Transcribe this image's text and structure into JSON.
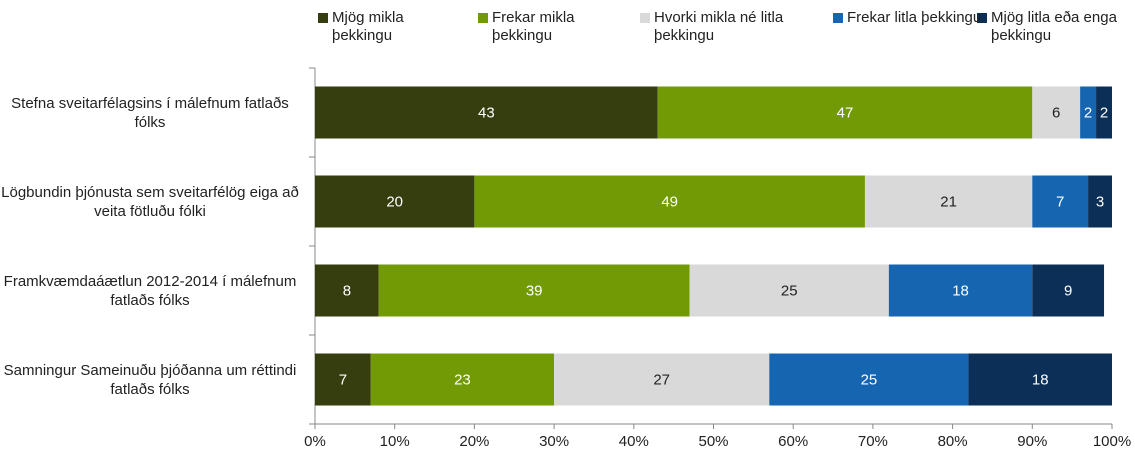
{
  "chart_data": {
    "type": "stacked_bar_horizontal",
    "categories": [
      "Stefna sveitarfélagsins í málefnum fatlaðs fólks",
      "Lögbundin þjónusta sem sveitarfélög eiga að veita fötluðu fólki",
      "Framkvæmdaáætlun 2012-2014 í málefnum fatlaðs fólks",
      "Samningur Sameinuðu þjóðanna um réttindi fatlaðs fólks"
    ],
    "series": [
      {
        "name": "Mjög mikla þekkingu",
        "color": "#363d0f",
        "values": [
          43,
          20,
          8,
          7
        ]
      },
      {
        "name": "Frekar mikla þekkingu",
        "color": "#719a05",
        "values": [
          47,
          49,
          39,
          23
        ]
      },
      {
        "name": "Hvorki mikla né litla þekkingu",
        "color": "#d9d9d9",
        "values": [
          6,
          21,
          25,
          27
        ]
      },
      {
        "name": "Frekar litla þekkingu",
        "color": "#1665b0",
        "values": [
          2,
          7,
          18,
          25
        ]
      },
      {
        "name": "Mjög litla eða enga þekkingu",
        "color": "#0c2f58",
        "values": [
          2,
          3,
          9,
          18
        ]
      }
    ],
    "xlim": [
      0,
      100
    ],
    "xticks": [
      {
        "value": 0,
        "label": "0%"
      },
      {
        "value": 10,
        "label": "10%"
      },
      {
        "value": 20,
        "label": "20%"
      },
      {
        "value": 30,
        "label": "30%"
      },
      {
        "value": 40,
        "label": "40%"
      },
      {
        "value": 50,
        "label": "50%"
      },
      {
        "value": 60,
        "label": "60%"
      },
      {
        "value": 70,
        "label": "70%"
      },
      {
        "value": 80,
        "label": "80%"
      },
      {
        "value": 90,
        "label": "90%"
      },
      {
        "value": 100,
        "label": "100%"
      }
    ],
    "legend": "top"
  }
}
